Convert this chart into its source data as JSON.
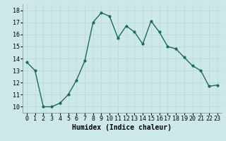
{
  "x": [
    0,
    1,
    2,
    3,
    4,
    5,
    6,
    7,
    8,
    9,
    10,
    11,
    12,
    13,
    14,
    15,
    16,
    17,
    18,
    19,
    20,
    21,
    22,
    23
  ],
  "y": [
    13.7,
    13.0,
    10.0,
    10.0,
    10.3,
    11.0,
    12.2,
    13.8,
    17.0,
    17.8,
    17.5,
    15.7,
    16.7,
    16.2,
    15.2,
    17.1,
    16.2,
    15.0,
    14.8,
    14.1,
    13.4,
    13.0,
    11.7,
    11.8
  ],
  "line_color": "#1a6b5a",
  "marker": "o",
  "marker_size": 2.0,
  "linewidth": 1.0,
  "xlabel": "Humidex (Indice chaleur)",
  "ylim": [
    9.5,
    18.5
  ],
  "xlim": [
    -0.5,
    23.5
  ],
  "yticks": [
    10,
    11,
    12,
    13,
    14,
    15,
    16,
    17,
    18
  ],
  "xticks": [
    0,
    1,
    2,
    3,
    4,
    5,
    6,
    7,
    8,
    9,
    10,
    11,
    12,
    13,
    14,
    15,
    16,
    17,
    18,
    19,
    20,
    21,
    22,
    23
  ],
  "bg_color": "#cce8e8",
  "grid_color": "#c0d8d8",
  "xlabel_fontsize": 7,
  "tick_fontsize": 6
}
